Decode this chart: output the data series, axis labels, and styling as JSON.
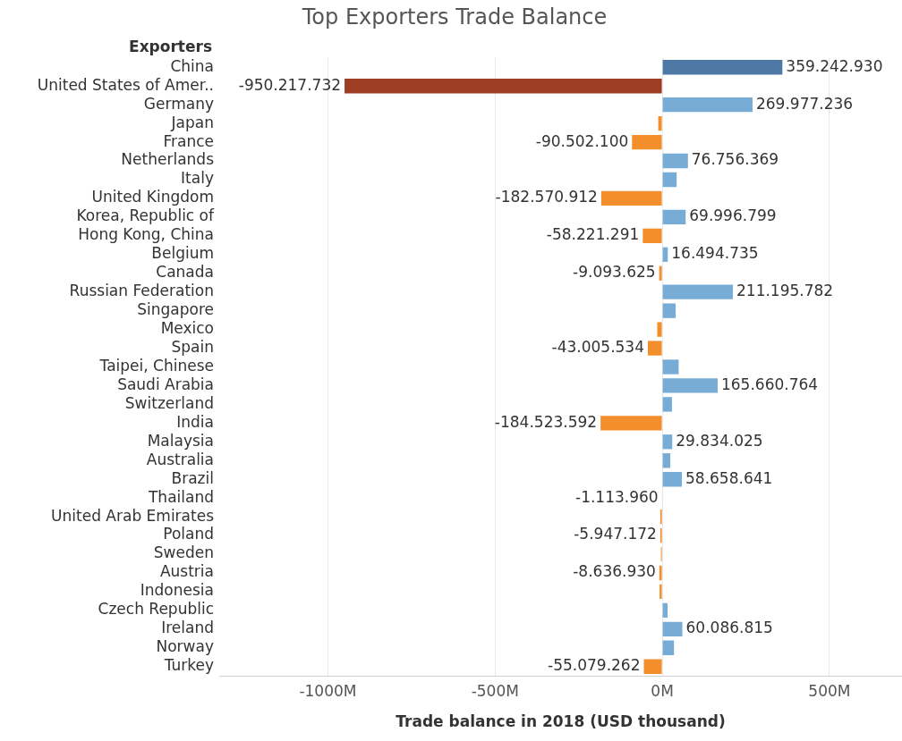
{
  "chart_data": {
    "type": "bar",
    "orientation": "horizontal",
    "title": "Top Exporters Trade Balance",
    "xlabel": "Trade balance in 2018 (USD thousand)",
    "ylabel": "Exporters",
    "categories": [
      "China",
      "United States of Amer..",
      "Germany",
      "Japan",
      "France",
      "Netherlands",
      "Italy",
      "United Kingdom",
      "Korea, Republic of",
      "Hong Kong, China",
      "Belgium",
      "Canada",
      "Russian Federation",
      "Singapore",
      "Mexico",
      "Spain",
      "Taipei, Chinese",
      "Saudi Arabia",
      "Switzerland",
      "India",
      "Malaysia",
      "Australia",
      "Brazil",
      "Thailand",
      "United Arab Emirates",
      "Poland",
      "Sweden",
      "Austria",
      "Indonesia",
      "Czech Republic",
      "Ireland",
      "Norway",
      "Turkey"
    ],
    "values": [
      359242930,
      -950217732,
      269977236,
      -12000000,
      -90502100,
      76756369,
      43000000,
      -182570912,
      69996799,
      -58221291,
      16494735,
      -9093625,
      211195782,
      40000000,
      -15000000,
      -43005534,
      49000000,
      165660764,
      29000000,
      -184523592,
      29834025,
      24000000,
      58658641,
      -1113960,
      -6000000,
      -5947172,
      -4000000,
      -8636930,
      -8000000,
      16000000,
      60086815,
      35000000,
      -55079262
    ],
    "value_labels": [
      "359.242.930",
      "-950.217.732",
      "269.977.236",
      null,
      "-90.502.100",
      "76.756.369",
      null,
      "-182.570.912",
      "69.996.799",
      "-58.221.291",
      "16.494.735",
      "-9.093.625",
      "211.195.782",
      null,
      null,
      "-43.005.534",
      null,
      "165.660.764",
      null,
      "-184.523.592",
      "29.834.025",
      null,
      "58.658.641",
      "-1.113.960",
      null,
      "-5.947.172",
      null,
      "-8.636.930",
      null,
      null,
      "60.086.815",
      null,
      "-55.079.262"
    ],
    "colors": [
      "#4e79a7",
      "#9e3d22",
      "#76acd6",
      "#f28e2b",
      "#f28e2b",
      "#76acd6",
      "#76acd6",
      "#f28e2b",
      "#76acd6",
      "#f28e2b",
      "#76acd6",
      "#f28e2b",
      "#76acd6",
      "#76acd6",
      "#f28e2b",
      "#f28e2b",
      "#76acd6",
      "#76acd6",
      "#76acd6",
      "#f28e2b",
      "#76acd6",
      "#76acd6",
      "#76acd6",
      "#f28e2b",
      "#f28e2b",
      "#f28e2b",
      "#f28e2b",
      "#f28e2b",
      "#f28e2b",
      "#76acd6",
      "#76acd6",
      "#76acd6",
      "#f28e2b"
    ],
    "xlim": [
      -1325000000,
      717000000
    ],
    "xticks": [
      {
        "value": -1000000000,
        "label": "-1000M"
      },
      {
        "value": -500000000,
        "label": "-500M"
      },
      {
        "value": 0,
        "label": "0M"
      },
      {
        "value": 500000000,
        "label": "500M"
      }
    ],
    "grid": "x",
    "legend": false
  }
}
